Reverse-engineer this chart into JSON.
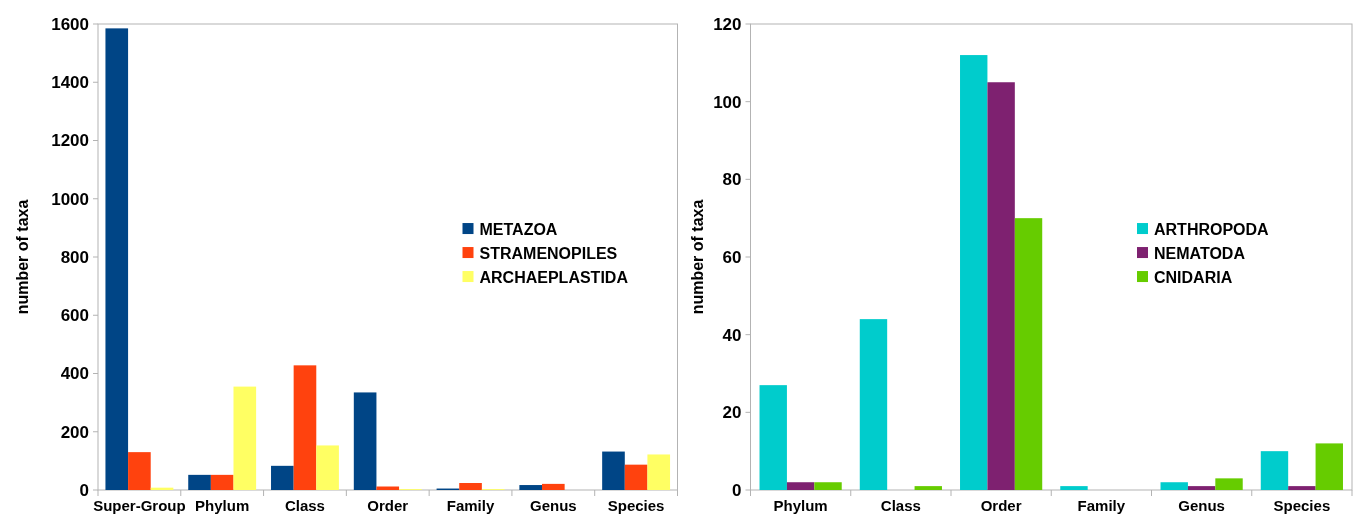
{
  "chart_data": [
    {
      "type": "bar",
      "ylabel": "number of taxa",
      "categories": [
        "Super-Group",
        "Phylum",
        "Class",
        "Order",
        "Family",
        "Genus",
        "Species"
      ],
      "series": [
        {
          "name": "METAZOA",
          "color": "#004586",
          "values": [
            1585,
            52,
            83,
            335,
            5,
            17,
            132
          ]
        },
        {
          "name": "STRAMENOPILES",
          "color": "#ff420e",
          "values": [
            130,
            52,
            428,
            12,
            24,
            21,
            87
          ]
        },
        {
          "name": "ARCHAEPLASTIDA",
          "color": "#ffff63",
          "values": [
            8,
            355,
            153,
            3,
            3,
            0,
            122
          ]
        }
      ],
      "ylim": [
        0,
        1600
      ],
      "yticks": [
        0,
        200,
        400,
        600,
        800,
        1000,
        1200,
        1400,
        1600
      ],
      "grid": false,
      "legend": "right"
    },
    {
      "type": "bar",
      "ylabel": "number of taxa",
      "categories": [
        "Phylum",
        "Class",
        "Order",
        "Family",
        "Genus",
        "Species"
      ],
      "series": [
        {
          "name": "ARTHROPODA",
          "color": "#00cccc",
          "values": [
            27,
            44,
            112,
            1,
            2,
            10
          ]
        },
        {
          "name": "NEMATODA",
          "color": "#7e2170",
          "values": [
            2,
            0,
            105,
            0,
            1,
            1
          ]
        },
        {
          "name": "CNIDARIA",
          "color": "#66cc00",
          "values": [
            2,
            1,
            70,
            0,
            3,
            12
          ]
        }
      ],
      "ylim": [
        0,
        120
      ],
      "yticks": [
        0,
        20,
        40,
        60,
        80,
        100,
        120
      ],
      "grid": false,
      "legend": "right"
    }
  ]
}
